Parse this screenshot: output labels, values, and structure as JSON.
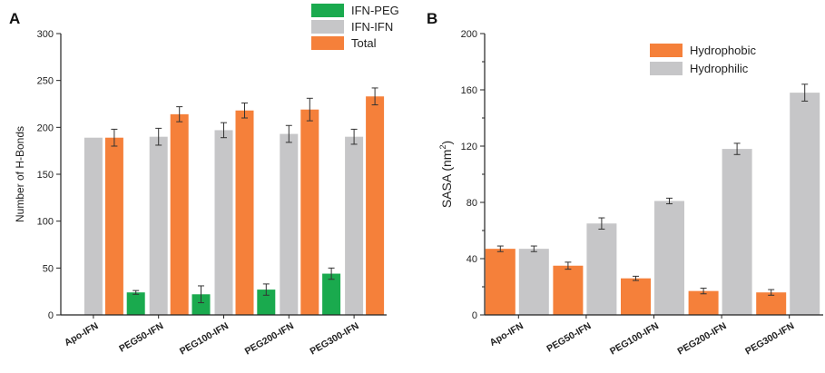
{
  "chart_data": [
    {
      "panel": "A",
      "type": "bar",
      "categories": [
        "Apo-IFN",
        "PEG50-IFN",
        "PEG100-IFN",
        "PEG200-IFN",
        "PEG300-IFN"
      ],
      "ylabel": "Number of H-Bonds",
      "ylim": [
        0,
        300
      ],
      "yticks": [
        0,
        50,
        100,
        150,
        200,
        250,
        300
      ],
      "legend_position": "top-right",
      "series": [
        {
          "name": "IFN-PEG",
          "color": "#1aaa4e",
          "values": [
            null,
            24,
            22,
            27,
            44
          ],
          "errors": [
            null,
            2,
            9,
            6,
            6
          ]
        },
        {
          "name": "IFN-IFN",
          "color": "#c6c6c8",
          "values": [
            189,
            190,
            197,
            193,
            190
          ],
          "errors": [
            null,
            9,
            8,
            9,
            8
          ]
        },
        {
          "name": "Total",
          "color": "#f5803a",
          "values": [
            189,
            214,
            218,
            219,
            233
          ],
          "errors": [
            9,
            8,
            8,
            12,
            9
          ]
        }
      ]
    },
    {
      "panel": "B",
      "type": "bar",
      "categories": [
        "Apo-IFN",
        "PEG50-IFN",
        "PEG100-IFN",
        "PEG200-IFN",
        "PEG300-IFN"
      ],
      "ylabel_main": "SASA (nm",
      "ylabel_sup": "2",
      "ylabel_end": ")",
      "ylim": [
        0,
        200
      ],
      "yticks": [
        0,
        40,
        80,
        120,
        160,
        200
      ],
      "legend_position": "top-center",
      "series": [
        {
          "name": "Hydrophobic",
          "color": "#f5803a",
          "values": [
            47,
            35,
            26,
            17,
            16
          ],
          "errors": [
            2,
            2.5,
            1.5,
            2,
            2
          ]
        },
        {
          "name": "Hydrophilic",
          "color": "#c6c6c8",
          "values": [
            47,
            65,
            81,
            118,
            158
          ],
          "errors": [
            2,
            4,
            2,
            4,
            6
          ]
        }
      ]
    }
  ]
}
